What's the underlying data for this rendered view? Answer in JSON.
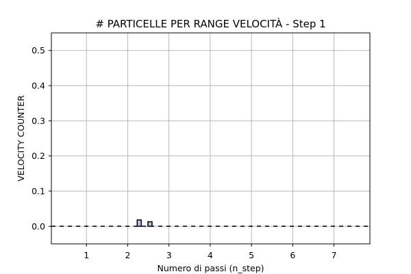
{
  "chart_data": {
    "type": "bar",
    "title": "# PARTICELLE PER RANGE VELOCITÀ - Step 1",
    "xlabel": "Numero di passi (n_step)",
    "ylabel": "VELOCITY COUNTER",
    "xlim": [
      0.15,
      7.87
    ],
    "ylim": [
      -0.05,
      0.55
    ],
    "x_ticks": [
      "1",
      "2",
      "3",
      "4",
      "5",
      "6",
      "7"
    ],
    "y_ticks": [
      "0.0",
      "0.1",
      "0.2",
      "0.3",
      "0.4",
      "0.5"
    ],
    "grid": true,
    "bar_color": "#a6c8e0",
    "bar_edge_color": "#000000",
    "baseline_color": "#000000",
    "bar_width": 0.1,
    "bars": [
      {
        "x": 2.28,
        "value": 0.018
      },
      {
        "x": 2.54,
        "value": 0.013
      }
    ]
  }
}
